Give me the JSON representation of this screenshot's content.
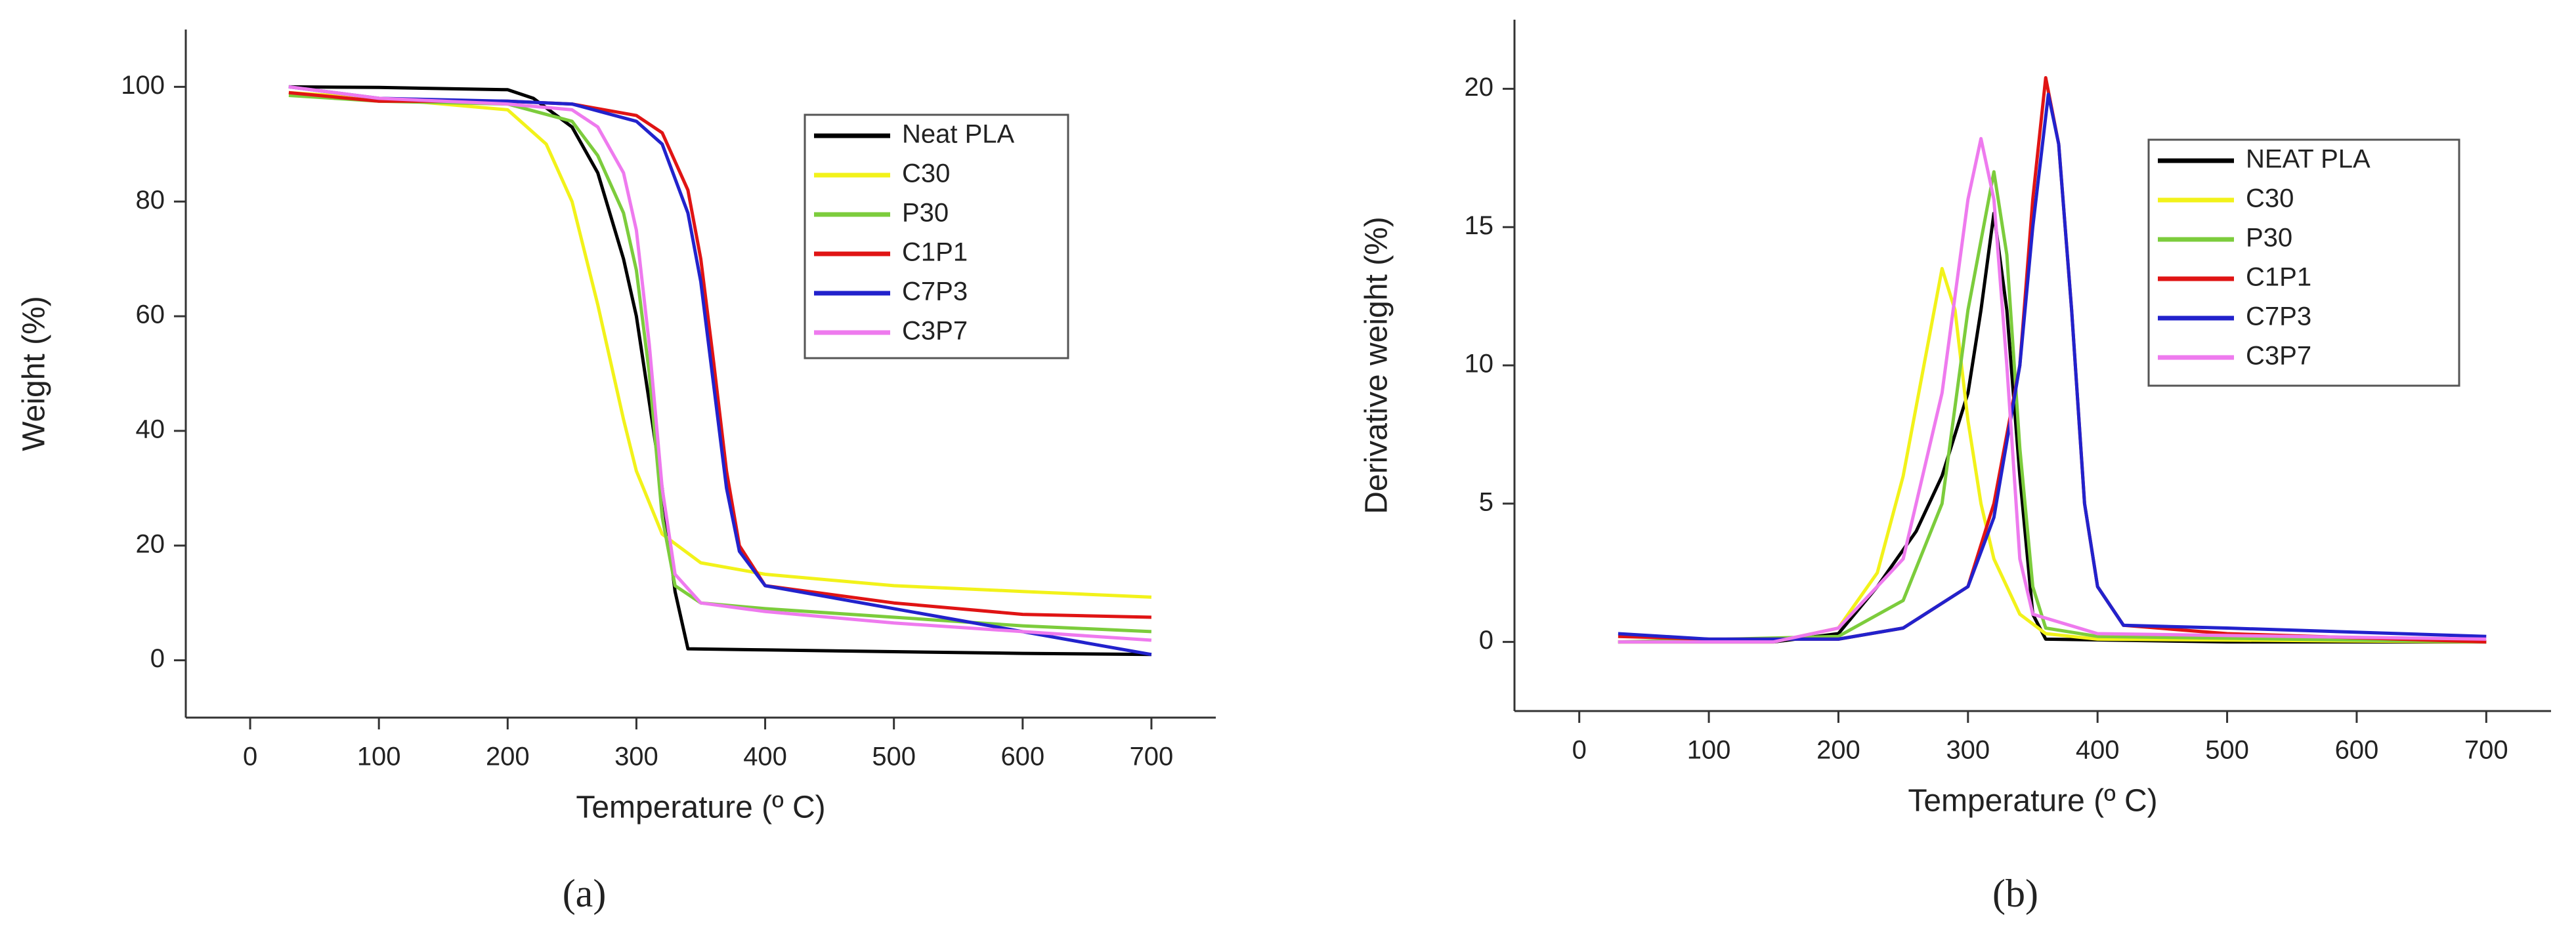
{
  "chart_data": [
    {
      "type": "line",
      "xlabel": "Temperature (º C)",
      "ylabel": "Weight (%)",
      "caption": "(a)",
      "xlim": [
        -50,
        750
      ],
      "ylim": [
        -10,
        110
      ],
      "xticks": [
        0,
        100,
        200,
        300,
        400,
        500,
        600,
        700
      ],
      "yticks": [
        0,
        20,
        40,
        60,
        80,
        100
      ],
      "series": [
        {
          "name": "Neat PLA",
          "color": "#000000",
          "x": [
            30,
            100,
            200,
            220,
            250,
            270,
            290,
            300,
            310,
            320,
            330,
            340,
            400,
            500,
            600,
            700
          ],
          "values": [
            100,
            99.9,
            99.5,
            98,
            93,
            85,
            70,
            60,
            45,
            30,
            12,
            2,
            1.8,
            1.5,
            1.2,
            1
          ]
        },
        {
          "name": "C30",
          "color": "#f2f21a",
          "x": [
            30,
            100,
            200,
            230,
            250,
            270,
            290,
            300,
            320,
            350,
            400,
            500,
            600,
            700
          ],
          "values": [
            99,
            98,
            96,
            90,
            80,
            62,
            42,
            33,
            22,
            17,
            15,
            13,
            12,
            11
          ]
        },
        {
          "name": "P30",
          "color": "#7ccc3c",
          "x": [
            30,
            100,
            200,
            250,
            270,
            290,
            300,
            310,
            320,
            330,
            350,
            400,
            500,
            600,
            700
          ],
          "values": [
            98.5,
            97.5,
            97,
            94,
            88,
            78,
            68,
            50,
            25,
            13,
            10,
            9,
            7.5,
            6,
            5
          ]
        },
        {
          "name": "C1P1",
          "color": "#e01414",
          "x": [
            30,
            100,
            200,
            250,
            300,
            320,
            340,
            350,
            360,
            370,
            380,
            400,
            500,
            600,
            700
          ],
          "values": [
            99,
            97.5,
            97.5,
            97,
            95,
            92,
            82,
            70,
            52,
            33,
            20,
            13,
            10,
            8,
            7.5
          ]
        },
        {
          "name": "C7P3",
          "color": "#2222cc",
          "x": [
            30,
            100,
            200,
            250,
            300,
            320,
            340,
            350,
            360,
            370,
            380,
            400,
            500,
            600,
            650,
            700
          ],
          "values": [
            100,
            98,
            97.5,
            97,
            94,
            90,
            78,
            66,
            48,
            30,
            19,
            13,
            9,
            5,
            3,
            1
          ]
        },
        {
          "name": "C3P7",
          "color": "#ee7aee",
          "x": [
            30,
            100,
            200,
            250,
            270,
            290,
            300,
            310,
            320,
            330,
            350,
            400,
            500,
            600,
            700
          ],
          "values": [
            100,
            98,
            97,
            96,
            93,
            85,
            75,
            55,
            30,
            15,
            10,
            8.5,
            6.5,
            5,
            3.5
          ]
        }
      ]
    },
    {
      "type": "line",
      "xlabel": "Temperature (º C)",
      "ylabel": "Derivative weight (%)",
      "caption": "(b)",
      "xlim": [
        -50,
        750
      ],
      "ylim": [
        -2.5,
        22.5
      ],
      "xticks": [
        0,
        100,
        200,
        300,
        400,
        500,
        600,
        700
      ],
      "yticks": [
        0,
        5,
        10,
        15,
        20
      ],
      "series": [
        {
          "name": "NEAT PLA",
          "color": "#000000",
          "x": [
            30,
            150,
            200,
            230,
            260,
            280,
            300,
            310,
            320,
            330,
            340,
            350,
            360,
            500,
            700
          ],
          "values": [
            0,
            0,
            0.3,
            2,
            4,
            6,
            9,
            12,
            15.5,
            12,
            6,
            1,
            0.1,
            0,
            0
          ]
        },
        {
          "name": "C30",
          "color": "#f2f21a",
          "x": [
            30,
            150,
            200,
            230,
            250,
            270,
            280,
            290,
            300,
            310,
            320,
            340,
            360,
            400,
            700
          ],
          "values": [
            0,
            0,
            0.5,
            2.5,
            6,
            11,
            13.5,
            12,
            8,
            5,
            3,
            1,
            0.3,
            0.1,
            0
          ]
        },
        {
          "name": "P30",
          "color": "#7ccc3c",
          "x": [
            30,
            200,
            250,
            280,
            300,
            320,
            330,
            340,
            350,
            360,
            400,
            700
          ],
          "values": [
            0,
            0.2,
            1.5,
            5,
            12,
            17,
            14,
            7,
            2,
            0.5,
            0.2,
            0
          ]
        },
        {
          "name": "C1P1",
          "color": "#e01414",
          "x": [
            30,
            100,
            200,
            250,
            300,
            320,
            340,
            350,
            360,
            370,
            380,
            390,
            400,
            420,
            500,
            700
          ],
          "values": [
            0.2,
            0.1,
            0.1,
            0.5,
            2,
            5,
            10,
            16,
            20.4,
            18,
            12,
            5,
            2,
            0.6,
            0.3,
            0
          ]
        },
        {
          "name": "C7P3",
          "color": "#2222cc",
          "x": [
            30,
            100,
            200,
            250,
            300,
            320,
            340,
            350,
            362,
            370,
            380,
            390,
            400,
            420,
            500,
            700
          ],
          "values": [
            0.3,
            0.1,
            0.1,
            0.5,
            2,
            4.5,
            10,
            15,
            19.8,
            18,
            12,
            5,
            2,
            0.6,
            0.5,
            0.2
          ]
        },
        {
          "name": "C3P7",
          "color": "#ee7aee",
          "x": [
            30,
            150,
            200,
            250,
            280,
            300,
            310,
            320,
            330,
            340,
            350,
            400,
            700
          ],
          "values": [
            0,
            0,
            0.5,
            3,
            9,
            16,
            18.2,
            16,
            10,
            3,
            1,
            0.3,
            0.1
          ]
        }
      ]
    }
  ]
}
